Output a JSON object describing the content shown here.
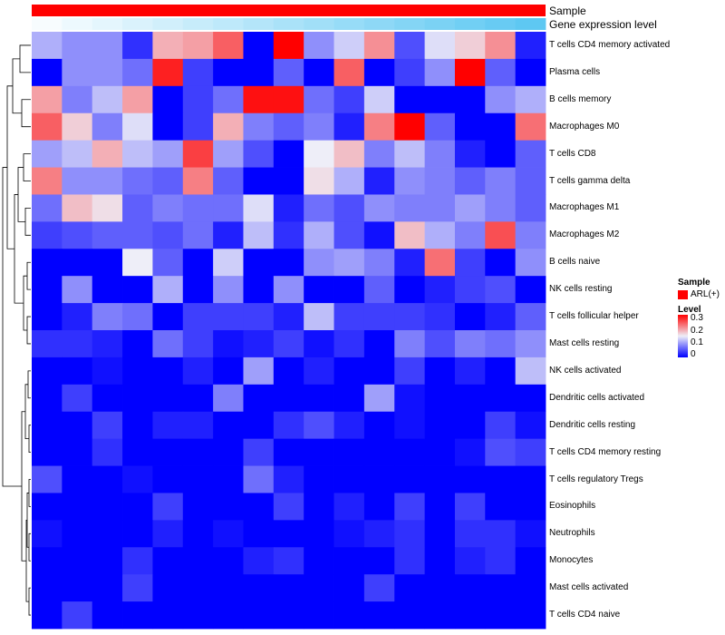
{
  "chart_data": {
    "type": "heatmap",
    "title": "",
    "column_annotations": [
      {
        "name": "Sample",
        "color": "#ff0000"
      },
      {
        "name": "Gene expression level",
        "gradient": [
          "#ffffff",
          "#5ec8f2"
        ]
      }
    ],
    "row_labels": [
      "T cells CD4 memory activated",
      "Plasma cells",
      "B cells memory",
      "Macrophages M0",
      "T cells CD8",
      "T cells gamma delta",
      "Macrophages M1",
      "Macrophages M2",
      "B cells naive",
      "NK cells resting",
      "T cells follicular helper",
      "Mast cells resting",
      "NK cells activated",
      "Dendritic cells activated",
      "Dendritic cells resting",
      "T cells CD4 memory resting",
      "T cells regulatory  Tregs",
      "Eosinophils",
      "Neutrophils",
      "Monocytes",
      "Mast cells activated",
      "T cells CD4 naive"
    ],
    "n_columns": 17,
    "values": [
      [
        0.11,
        0.09,
        0.09,
        0.03,
        0.19,
        0.2,
        0.24,
        0.0,
        0.3,
        0.09,
        0.13,
        0.21,
        0.05,
        0.14,
        0.17,
        0.21,
        0.02
      ],
      [
        0.0,
        0.09,
        0.09,
        0.07,
        0.28,
        0.04,
        0.0,
        0.0,
        0.06,
        0.0,
        0.24,
        0.0,
        0.04,
        0.09,
        0.3,
        0.06,
        0.0
      ],
      [
        0.2,
        0.08,
        0.12,
        0.2,
        0.0,
        0.04,
        0.07,
        0.29,
        0.29,
        0.07,
        0.04,
        0.13,
        0.0,
        0.0,
        0.0,
        0.09,
        0.11
      ],
      [
        0.24,
        0.17,
        0.08,
        0.14,
        0.0,
        0.04,
        0.19,
        0.08,
        0.06,
        0.08,
        0.02,
        0.22,
        0.3,
        0.06,
        0.0,
        0.0,
        0.23
      ],
      [
        0.1,
        0.12,
        0.19,
        0.12,
        0.1,
        0.26,
        0.1,
        0.05,
        0.0,
        0.15,
        0.18,
        0.08,
        0.12,
        0.08,
        0.02,
        0.0,
        0.06
      ],
      [
        0.22,
        0.09,
        0.09,
        0.07,
        0.06,
        0.22,
        0.06,
        0.0,
        0.0,
        0.16,
        0.11,
        0.02,
        0.09,
        0.08,
        0.06,
        0.08,
        0.06
      ],
      [
        0.07,
        0.18,
        0.16,
        0.06,
        0.08,
        0.07,
        0.07,
        0.14,
        0.02,
        0.07,
        0.05,
        0.09,
        0.08,
        0.08,
        0.1,
        0.08,
        0.06
      ],
      [
        0.04,
        0.05,
        0.06,
        0.06,
        0.05,
        0.07,
        0.02,
        0.12,
        0.03,
        0.11,
        0.05,
        0.01,
        0.18,
        0.11,
        0.08,
        0.25,
        0.08
      ],
      [
        0.0,
        0.0,
        0.0,
        0.15,
        0.06,
        0.0,
        0.13,
        0.0,
        0.0,
        0.09,
        0.1,
        0.08,
        0.02,
        0.23,
        0.04,
        0.0,
        0.09
      ],
      [
        0.0,
        0.09,
        0.0,
        0.0,
        0.11,
        0.0,
        0.09,
        0.0,
        0.09,
        0.0,
        0.0,
        0.06,
        0.0,
        0.02,
        0.04,
        0.05,
        0.0
      ],
      [
        0.0,
        0.02,
        0.08,
        0.07,
        0.0,
        0.04,
        0.04,
        0.04,
        0.02,
        0.12,
        0.04,
        0.04,
        0.04,
        0.03,
        0.0,
        0.02,
        0.06
      ],
      [
        0.03,
        0.03,
        0.02,
        0.0,
        0.07,
        0.04,
        0.01,
        0.02,
        0.04,
        0.01,
        0.03,
        0.0,
        0.08,
        0.05,
        0.08,
        0.07,
        0.09
      ],
      [
        0.0,
        0.0,
        0.01,
        0.0,
        0.0,
        0.02,
        0.0,
        0.1,
        0.0,
        0.02,
        0.0,
        0.0,
        0.04,
        0.0,
        0.02,
        0.0,
        0.12
      ],
      [
        0.0,
        0.04,
        0.0,
        0.0,
        0.0,
        0.0,
        0.08,
        0.0,
        0.0,
        0.0,
        0.0,
        0.1,
        0.01,
        0.0,
        0.0,
        0.0,
        0.0
      ],
      [
        0.0,
        0.0,
        0.04,
        0.0,
        0.02,
        0.02,
        0.0,
        0.0,
        0.03,
        0.05,
        0.02,
        0.0,
        0.01,
        0.0,
        0.0,
        0.04,
        0.01
      ],
      [
        0.0,
        0.0,
        0.03,
        0.0,
        0.0,
        0.0,
        0.0,
        0.04,
        0.0,
        0.0,
        0.0,
        0.0,
        0.0,
        0.0,
        0.01,
        0.05,
        0.04
      ],
      [
        0.05,
        0.0,
        0.0,
        0.01,
        0.0,
        0.0,
        0.0,
        0.07,
        0.02,
        0.0,
        0.0,
        0.0,
        0.0,
        0.0,
        0.0,
        0.0,
        0.0
      ],
      [
        0.0,
        0.0,
        0.0,
        0.0,
        0.04,
        0.0,
        0.0,
        0.0,
        0.04,
        0.0,
        0.02,
        0.0,
        0.04,
        0.0,
        0.04,
        0.0,
        0.0
      ],
      [
        0.01,
        0.0,
        0.0,
        0.0,
        0.02,
        0.0,
        0.01,
        0.0,
        0.0,
        0.0,
        0.01,
        0.02,
        0.03,
        0.0,
        0.03,
        0.03,
        0.01
      ],
      [
        0.0,
        0.0,
        0.0,
        0.03,
        0.0,
        0.0,
        0.0,
        0.02,
        0.03,
        0.0,
        0.0,
        0.0,
        0.03,
        0.0,
        0.02,
        0.03,
        0.0
      ],
      [
        0.0,
        0.0,
        0.0,
        0.04,
        0.0,
        0.0,
        0.0,
        0.0,
        0.0,
        0.0,
        0.0,
        0.04,
        0.0,
        0.0,
        0.0,
        0.0,
        0.0
      ],
      [
        0.0,
        0.04,
        0.0,
        0.0,
        0.0,
        0.0,
        0.0,
        0.0,
        0.0,
        0.0,
        0.0,
        0.0,
        0.0,
        0.0,
        0.0,
        0.0,
        0.0
      ]
    ],
    "color_scale": {
      "min": 0,
      "mid": 0.15,
      "max": 0.3,
      "colors": [
        "#0000ff",
        "#eeeef8",
        "#ff0000"
      ]
    },
    "legend": {
      "sample_title": "Sample",
      "sample_entry": "ARL(+)",
      "sample_color": "#ff0000",
      "level_title": "Level",
      "ticks": [
        "0.3",
        "0.2",
        "0.1",
        "0"
      ]
    },
    "dendrogram": "rows"
  }
}
